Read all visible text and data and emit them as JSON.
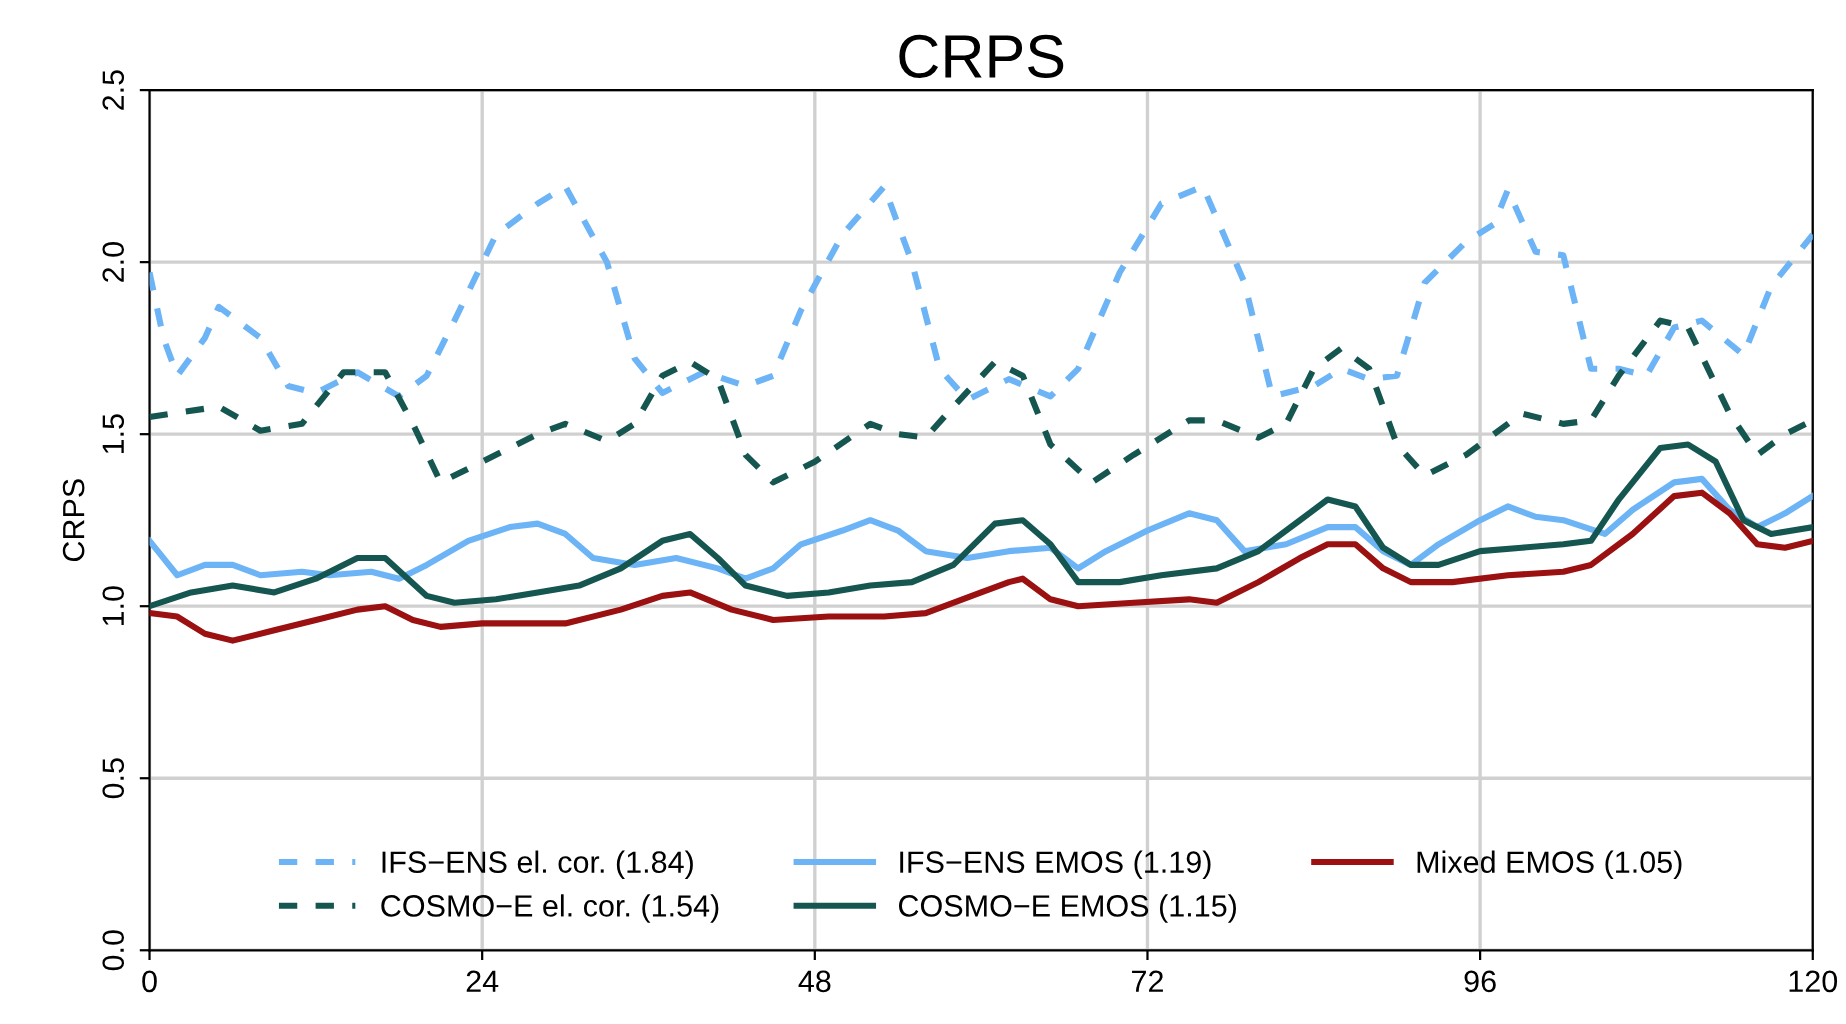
{
  "chart_data": {
    "type": "line",
    "title": "CRPS",
    "ylabel": "CRPS",
    "xlim": [
      0,
      120
    ],
    "xticks": [
      0,
      24,
      48,
      72,
      96,
      120
    ],
    "ylim": [
      0,
      2.5
    ],
    "yticks": [
      {
        "value": 0,
        "label": "0.0"
      },
      0.5,
      {
        "value": 1,
        "label": "1.0"
      },
      1.5,
      {
        "value": 2,
        "label": "2.0"
      },
      2.5
    ],
    "grid": true,
    "legend": "bottom",
    "marker": "none",
    "series": [
      {
        "name": "IFS−ENS el. cor. (1.84)",
        "color": "#6cb4f5",
        "line_style": "dashed",
        "x": [
          0,
          1,
          2,
          4,
          5,
          8,
          10,
          12,
          15,
          18,
          20,
          22,
          25,
          28,
          30,
          33,
          35,
          37,
          40,
          43,
          45,
          47,
          50,
          53,
          55,
          57,
          59,
          62,
          65,
          67,
          70,
          73,
          76,
          79,
          81,
          84,
          86,
          88,
          90,
          92,
          95,
          97,
          98,
          100,
          102,
          104,
          106,
          108,
          110,
          112,
          115,
          117,
          120
        ],
        "values": [
          1.97,
          1.78,
          1.67,
          1.78,
          1.87,
          1.78,
          1.64,
          1.62,
          1.68,
          1.61,
          1.67,
          1.83,
          2.08,
          2.17,
          2.22,
          2.0,
          1.72,
          1.62,
          1.68,
          1.64,
          1.67,
          1.86,
          2.08,
          2.22,
          2.0,
          1.69,
          1.6,
          1.66,
          1.61,
          1.69,
          1.97,
          2.17,
          2.22,
          1.94,
          1.61,
          1.64,
          1.69,
          1.66,
          1.67,
          1.94,
          2.06,
          2.11,
          2.21,
          2.03,
          2.02,
          1.69,
          1.69,
          1.67,
          1.81,
          1.83,
          1.73,
          1.93,
          2.08
        ]
      },
      {
        "name": "COSMO−E el. cor. (1.54)",
        "color": "#155750",
        "line_style": "dashed",
        "x": [
          0,
          5,
          8,
          11,
          14,
          17,
          19,
          21,
          24,
          28,
          30,
          33,
          35,
          37,
          39,
          41,
          43,
          45,
          48,
          52,
          54,
          56,
          58,
          61,
          63,
          65,
          68,
          71,
          75,
          77,
          80,
          82,
          84,
          86,
          88,
          90,
          92,
          95,
          99,
          102,
          104,
          106,
          109,
          111,
          114,
          116,
          118,
          120
        ],
        "values": [
          1.55,
          1.58,
          1.51,
          1.53,
          1.68,
          1.68,
          1.53,
          1.36,
          1.42,
          1.5,
          1.53,
          1.48,
          1.53,
          1.67,
          1.71,
          1.66,
          1.44,
          1.36,
          1.42,
          1.53,
          1.5,
          1.49,
          1.58,
          1.71,
          1.67,
          1.47,
          1.36,
          1.44,
          1.54,
          1.54,
          1.49,
          1.53,
          1.69,
          1.75,
          1.69,
          1.47,
          1.38,
          1.44,
          1.56,
          1.53,
          1.54,
          1.67,
          1.83,
          1.81,
          1.56,
          1.44,
          1.5,
          1.54
        ]
      },
      {
        "name": "IFS−ENS EMOS (1.19)",
        "color": "#6cb4f5",
        "line_style": "solid",
        "x": [
          0,
          2,
          4,
          6,
          8,
          11,
          13,
          16,
          18,
          20,
          23,
          26,
          28,
          30,
          32,
          35,
          38,
          41,
          43,
          45,
          47,
          50,
          52,
          54,
          56,
          59,
          62,
          65,
          67,
          69,
          72,
          75,
          77,
          79,
          82,
          85,
          87,
          89,
          91,
          93,
          96,
          98,
          100,
          102,
          105,
          107,
          110,
          112,
          114,
          116,
          118,
          120
        ],
        "values": [
          1.19,
          1.09,
          1.12,
          1.12,
          1.09,
          1.1,
          1.09,
          1.1,
          1.08,
          1.12,
          1.19,
          1.23,
          1.24,
          1.21,
          1.14,
          1.12,
          1.14,
          1.11,
          1.08,
          1.11,
          1.18,
          1.22,
          1.25,
          1.22,
          1.16,
          1.14,
          1.16,
          1.17,
          1.11,
          1.16,
          1.22,
          1.27,
          1.25,
          1.16,
          1.18,
          1.23,
          1.23,
          1.16,
          1.12,
          1.18,
          1.25,
          1.29,
          1.26,
          1.25,
          1.21,
          1.28,
          1.36,
          1.37,
          1.28,
          1.23,
          1.27,
          1.32
        ]
      },
      {
        "name": "COSMO−E EMOS (1.15)",
        "color": "#155750",
        "line_style": "solid",
        "x": [
          0,
          3,
          6,
          9,
          12,
          15,
          17,
          20,
          22,
          25,
          28,
          31,
          34,
          37,
          39,
          41,
          43,
          46,
          49,
          52,
          55,
          58,
          61,
          63,
          65,
          67,
          70,
          73,
          77,
          80,
          83,
          85,
          87,
          89,
          91,
          93,
          96,
          99,
          102,
          104,
          106,
          109,
          111,
          113,
          115,
          117,
          120
        ],
        "values": [
          1.0,
          1.04,
          1.06,
          1.04,
          1.08,
          1.14,
          1.14,
          1.03,
          1.01,
          1.02,
          1.04,
          1.06,
          1.11,
          1.19,
          1.21,
          1.14,
          1.06,
          1.03,
          1.04,
          1.06,
          1.07,
          1.12,
          1.24,
          1.25,
          1.18,
          1.07,
          1.07,
          1.09,
          1.11,
          1.16,
          1.25,
          1.31,
          1.29,
          1.17,
          1.12,
          1.12,
          1.16,
          1.17,
          1.18,
          1.19,
          1.31,
          1.46,
          1.47,
          1.42,
          1.25,
          1.21,
          1.23
        ]
      },
      {
        "name": "Mixed EMOS (1.05)",
        "color": "#9b1111",
        "line_style": "solid",
        "x": [
          0,
          2,
          4,
          6,
          9,
          12,
          15,
          17,
          19,
          21,
          24,
          27,
          30,
          34,
          37,
          39,
          42,
          45,
          49,
          53,
          56,
          60,
          62,
          63,
          65,
          67,
          71,
          75,
          77,
          80,
          83,
          85,
          87,
          89,
          91,
          94,
          98,
          102,
          104,
          107,
          110,
          112,
          114,
          116,
          118,
          120
        ],
        "values": [
          0.98,
          0.97,
          0.92,
          0.9,
          0.93,
          0.96,
          0.99,
          1.0,
          0.96,
          0.94,
          0.95,
          0.95,
          0.95,
          0.99,
          1.03,
          1.04,
          0.99,
          0.96,
          0.97,
          0.97,
          0.98,
          1.04,
          1.07,
          1.08,
          1.02,
          1.0,
          1.01,
          1.02,
          1.01,
          1.07,
          1.14,
          1.18,
          1.18,
          1.11,
          1.07,
          1.07,
          1.09,
          1.1,
          1.12,
          1.21,
          1.32,
          1.33,
          1.27,
          1.18,
          1.17,
          1.19
        ]
      }
    ]
  }
}
